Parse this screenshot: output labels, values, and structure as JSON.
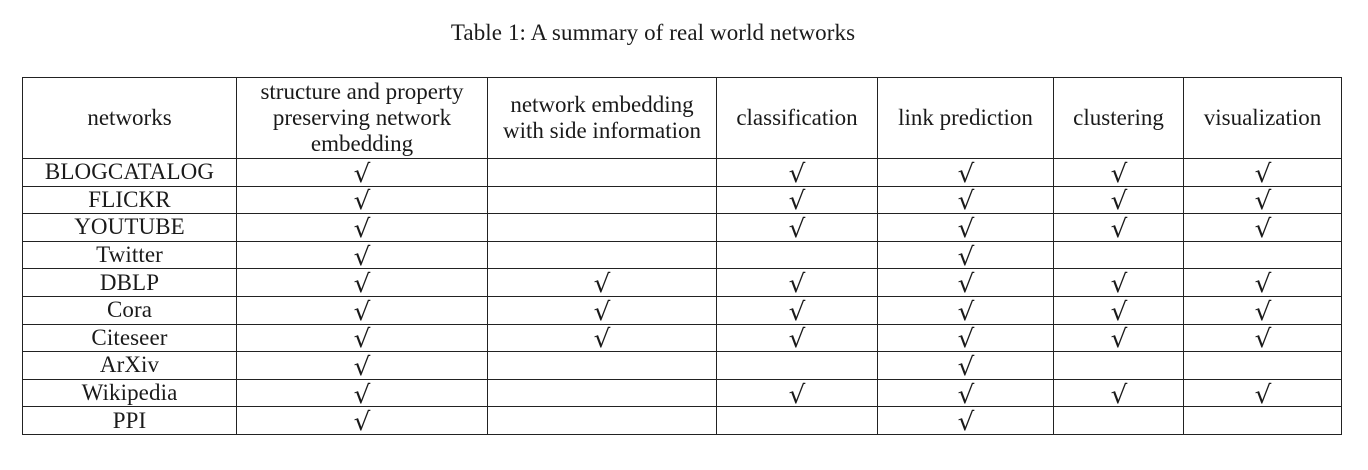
{
  "caption": "Table 1: A summary of real world networks",
  "columns": [
    "networks",
    "structure and property preserving network embedding",
    "network embedding with side information",
    "classification",
    "link prediction",
    "clustering",
    "visualization"
  ],
  "check_symbol": "√",
  "rows": [
    {
      "network": "BLOGCATALOG",
      "marks": [
        true,
        false,
        true,
        true,
        true,
        true
      ]
    },
    {
      "network": "FLICKR",
      "marks": [
        true,
        false,
        true,
        true,
        true,
        true
      ]
    },
    {
      "network": "YOUTUBE",
      "marks": [
        true,
        false,
        true,
        true,
        true,
        true
      ]
    },
    {
      "network": "Twitter",
      "marks": [
        true,
        false,
        false,
        true,
        false,
        false
      ]
    },
    {
      "network": "DBLP",
      "marks": [
        true,
        true,
        true,
        true,
        true,
        true
      ]
    },
    {
      "network": "Cora",
      "marks": [
        true,
        true,
        true,
        true,
        true,
        true
      ]
    },
    {
      "network": "Citeseer",
      "marks": [
        true,
        true,
        true,
        true,
        true,
        true
      ]
    },
    {
      "network": "ArXiv",
      "marks": [
        true,
        false,
        false,
        true,
        false,
        false
      ]
    },
    {
      "network": "Wikipedia",
      "marks": [
        true,
        false,
        true,
        true,
        true,
        true
      ]
    },
    {
      "network": "PPI",
      "marks": [
        true,
        false,
        false,
        true,
        false,
        false
      ]
    }
  ]
}
